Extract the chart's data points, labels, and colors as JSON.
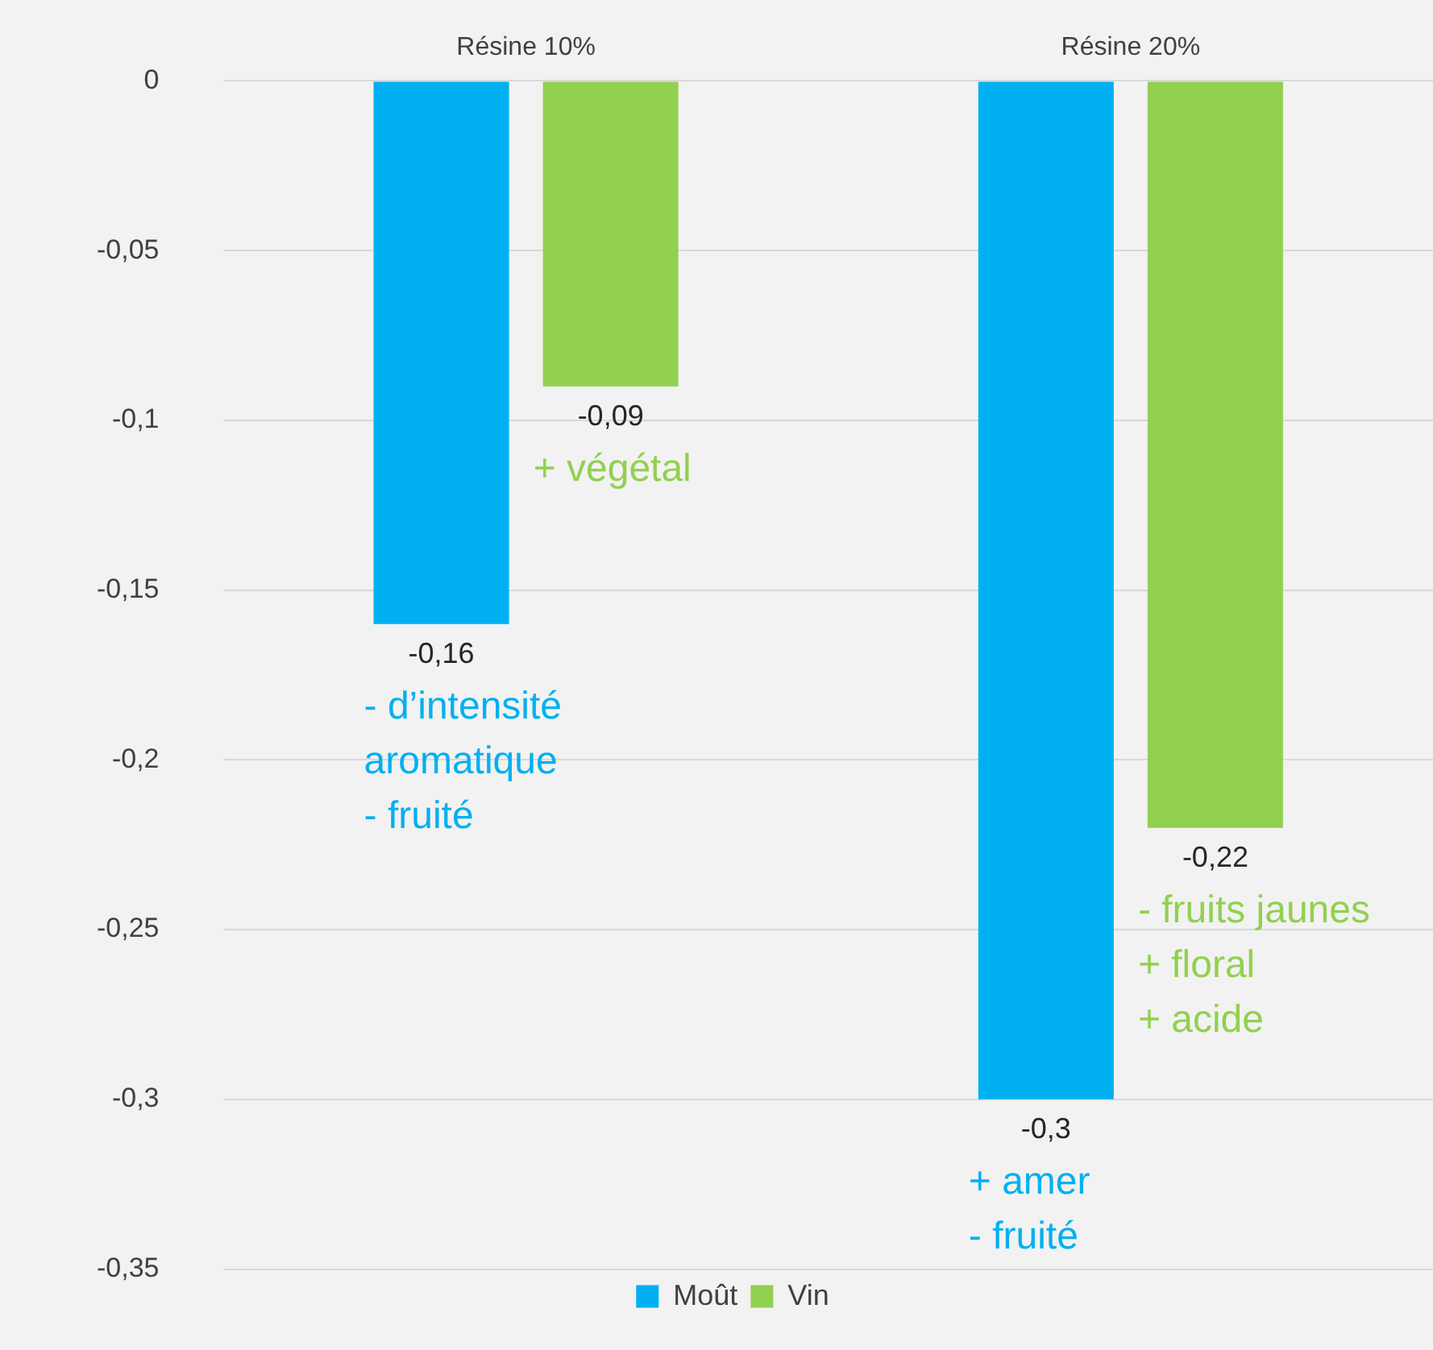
{
  "chart_data": {
    "type": "bar",
    "categories": [
      "Résine 10%",
      "Résine 20%"
    ],
    "series": [
      {
        "name": "Moût",
        "color": "#00b0f0",
        "values": [
          -0.16,
          -0.3
        ],
        "value_labels": [
          "-0,16",
          "-0,3"
        ]
      },
      {
        "name": "Vin",
        "color": "#92d050",
        "values": [
          -0.09,
          -0.22
        ],
        "value_labels": [
          "-0,09",
          "-0,22"
        ]
      }
    ],
    "ylim": [
      -0.35,
      0
    ],
    "yticks": [
      {
        "value": 0,
        "label": "0"
      },
      {
        "value": -0.05,
        "label": "-0,05"
      },
      {
        "value": -0.1,
        "label": "-0,1"
      },
      {
        "value": -0.15,
        "label": "-0,15"
      },
      {
        "value": -0.2,
        "label": "-0,2"
      },
      {
        "value": -0.25,
        "label": "-0,25"
      },
      {
        "value": -0.3,
        "label": "-0,3"
      },
      {
        "value": -0.35,
        "label": "-0,35"
      }
    ],
    "grid": "y",
    "legend": "bottom",
    "annotations": [
      "- d’intensité\naromatique\n- fruité",
      "+ végétal",
      "+ amer\n- fruité",
      "- fruits jaunes\n+ floral\n+ acide"
    ]
  }
}
